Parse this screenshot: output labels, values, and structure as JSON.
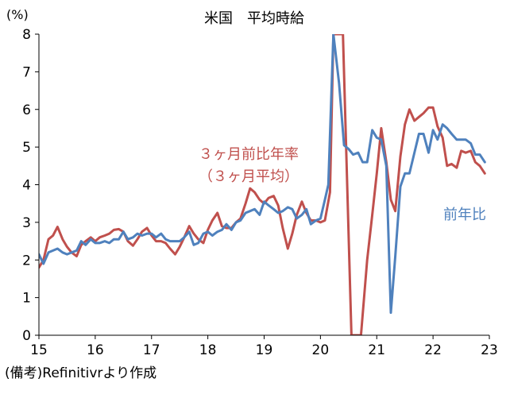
{
  "chart_data": {
    "type": "line",
    "title": "米国　平均時給",
    "ylabel": "(%)",
    "xlabel": "",
    "ylim": [
      0,
      8
    ],
    "xlim": [
      2015,
      2023
    ],
    "y_ticks": [
      0,
      1,
      2,
      3,
      4,
      5,
      6,
      7,
      8
    ],
    "x_ticks": [
      {
        "value": 2015,
        "label": "15"
      },
      {
        "value": 2016,
        "label": "16"
      },
      {
        "value": 2017,
        "label": "17"
      },
      {
        "value": 2018,
        "label": "18"
      },
      {
        "value": 2019,
        "label": "19"
      },
      {
        "value": 2020,
        "label": "20"
      },
      {
        "value": 2021,
        "label": "21"
      },
      {
        "value": 2022,
        "label": "22"
      },
      {
        "value": 2023,
        "label": "23"
      }
    ],
    "grid": false,
    "series": [
      {
        "name": "３ヶ月前比年率（３ヶ月平均）",
        "label_lines": [
          "３ヶ月前比年率",
          "（３ヶ月平均）"
        ],
        "color": "#c0504d",
        "points": [
          [
            2015.0,
            1.8
          ],
          [
            2015.08,
            2.0
          ],
          [
            2015.17,
            2.55
          ],
          [
            2015.25,
            2.65
          ],
          [
            2015.33,
            2.88
          ],
          [
            2015.42,
            2.55
          ],
          [
            2015.5,
            2.35
          ],
          [
            2015.58,
            2.2
          ],
          [
            2015.67,
            2.1
          ],
          [
            2015.75,
            2.4
          ],
          [
            2015.83,
            2.5
          ],
          [
            2015.92,
            2.6
          ],
          [
            2016.0,
            2.5
          ],
          [
            2016.08,
            2.6
          ],
          [
            2016.17,
            2.65
          ],
          [
            2016.25,
            2.7
          ],
          [
            2016.33,
            2.8
          ],
          [
            2016.42,
            2.82
          ],
          [
            2016.5,
            2.75
          ],
          [
            2016.58,
            2.5
          ],
          [
            2016.67,
            2.38
          ],
          [
            2016.75,
            2.55
          ],
          [
            2016.83,
            2.75
          ],
          [
            2016.92,
            2.85
          ],
          [
            2017.0,
            2.65
          ],
          [
            2017.08,
            2.5
          ],
          [
            2017.17,
            2.5
          ],
          [
            2017.25,
            2.45
          ],
          [
            2017.33,
            2.3
          ],
          [
            2017.42,
            2.15
          ],
          [
            2017.5,
            2.35
          ],
          [
            2017.58,
            2.6
          ],
          [
            2017.67,
            2.9
          ],
          [
            2017.75,
            2.7
          ],
          [
            2017.83,
            2.55
          ],
          [
            2017.92,
            2.45
          ],
          [
            2018.0,
            2.8
          ],
          [
            2018.08,
            3.05
          ],
          [
            2018.17,
            3.25
          ],
          [
            2018.25,
            2.9
          ],
          [
            2018.33,
            2.85
          ],
          [
            2018.42,
            2.85
          ],
          [
            2018.5,
            3.0
          ],
          [
            2018.58,
            3.1
          ],
          [
            2018.67,
            3.5
          ],
          [
            2018.75,
            3.9
          ],
          [
            2018.83,
            3.8
          ],
          [
            2018.92,
            3.6
          ],
          [
            2019.0,
            3.5
          ],
          [
            2019.08,
            3.65
          ],
          [
            2019.17,
            3.7
          ],
          [
            2019.25,
            3.45
          ],
          [
            2019.33,
            2.85
          ],
          [
            2019.42,
            2.3
          ],
          [
            2019.5,
            2.7
          ],
          [
            2019.58,
            3.2
          ],
          [
            2019.67,
            3.55
          ],
          [
            2019.75,
            3.25
          ],
          [
            2019.83,
            3.05
          ],
          [
            2019.92,
            3.05
          ],
          [
            2020.0,
            3.0
          ],
          [
            2020.08,
            3.05
          ],
          [
            2020.17,
            3.8
          ],
          [
            2020.23,
            8.0
          ],
          [
            2020.4,
            8.0
          ],
          [
            2020.55,
            0.0
          ],
          [
            2020.72,
            0.0
          ],
          [
            2020.83,
            2.0
          ],
          [
            2020.92,
            3.2
          ],
          [
            2021.0,
            4.3
          ],
          [
            2021.08,
            5.5
          ],
          [
            2021.17,
            4.6
          ],
          [
            2021.25,
            3.6
          ],
          [
            2021.33,
            3.3
          ],
          [
            2021.42,
            4.75
          ],
          [
            2021.5,
            5.6
          ],
          [
            2021.58,
            6.0
          ],
          [
            2021.67,
            5.7
          ],
          [
            2021.75,
            5.8
          ],
          [
            2021.83,
            5.9
          ],
          [
            2021.92,
            6.05
          ],
          [
            2022.0,
            6.05
          ],
          [
            2022.08,
            5.55
          ],
          [
            2022.17,
            5.25
          ],
          [
            2022.25,
            4.5
          ],
          [
            2022.33,
            4.55
          ],
          [
            2022.42,
            4.45
          ],
          [
            2022.5,
            4.9
          ],
          [
            2022.58,
            4.85
          ],
          [
            2022.67,
            4.9
          ],
          [
            2022.75,
            4.6
          ],
          [
            2022.83,
            4.5
          ],
          [
            2022.92,
            4.3
          ]
        ]
      },
      {
        "name": "前年比",
        "label_lines": [
          "前年比"
        ],
        "color": "#4f81bd",
        "points": [
          [
            2015.0,
            2.15
          ],
          [
            2015.08,
            1.9
          ],
          [
            2015.17,
            2.2
          ],
          [
            2015.25,
            2.25
          ],
          [
            2015.33,
            2.3
          ],
          [
            2015.42,
            2.2
          ],
          [
            2015.5,
            2.15
          ],
          [
            2015.58,
            2.2
          ],
          [
            2015.67,
            2.25
          ],
          [
            2015.75,
            2.5
          ],
          [
            2015.83,
            2.4
          ],
          [
            2015.92,
            2.55
          ],
          [
            2016.0,
            2.45
          ],
          [
            2016.08,
            2.45
          ],
          [
            2016.17,
            2.5
          ],
          [
            2016.25,
            2.45
          ],
          [
            2016.33,
            2.55
          ],
          [
            2016.42,
            2.55
          ],
          [
            2016.5,
            2.75
          ],
          [
            2016.58,
            2.55
          ],
          [
            2016.67,
            2.6
          ],
          [
            2016.75,
            2.7
          ],
          [
            2016.83,
            2.65
          ],
          [
            2016.92,
            2.7
          ],
          [
            2017.0,
            2.7
          ],
          [
            2017.08,
            2.6
          ],
          [
            2017.17,
            2.7
          ],
          [
            2017.25,
            2.55
          ],
          [
            2017.33,
            2.5
          ],
          [
            2017.42,
            2.5
          ],
          [
            2017.5,
            2.5
          ],
          [
            2017.58,
            2.6
          ],
          [
            2017.67,
            2.75
          ],
          [
            2017.75,
            2.4
          ],
          [
            2017.83,
            2.45
          ],
          [
            2017.92,
            2.7
          ],
          [
            2018.0,
            2.75
          ],
          [
            2018.08,
            2.65
          ],
          [
            2018.17,
            2.75
          ],
          [
            2018.25,
            2.8
          ],
          [
            2018.33,
            2.95
          ],
          [
            2018.42,
            2.8
          ],
          [
            2018.5,
            3.0
          ],
          [
            2018.58,
            3.05
          ],
          [
            2018.67,
            3.25
          ],
          [
            2018.75,
            3.3
          ],
          [
            2018.83,
            3.35
          ],
          [
            2018.92,
            3.2
          ],
          [
            2019.0,
            3.55
          ],
          [
            2019.08,
            3.45
          ],
          [
            2019.17,
            3.35
          ],
          [
            2019.25,
            3.25
          ],
          [
            2019.33,
            3.3
          ],
          [
            2019.42,
            3.4
          ],
          [
            2019.5,
            3.35
          ],
          [
            2019.58,
            3.1
          ],
          [
            2019.67,
            3.2
          ],
          [
            2019.75,
            3.35
          ],
          [
            2019.83,
            2.95
          ],
          [
            2019.92,
            3.05
          ],
          [
            2020.0,
            3.1
          ],
          [
            2020.08,
            3.6
          ],
          [
            2020.14,
            4.0
          ],
          [
            2020.23,
            8.0
          ],
          [
            2020.33,
            6.7
          ],
          [
            2020.42,
            5.05
          ],
          [
            2020.5,
            4.95
          ],
          [
            2020.58,
            4.8
          ],
          [
            2020.67,
            4.85
          ],
          [
            2020.75,
            4.6
          ],
          [
            2020.83,
            4.6
          ],
          [
            2020.92,
            5.45
          ],
          [
            2021.0,
            5.25
          ],
          [
            2021.08,
            5.2
          ],
          [
            2021.17,
            4.5
          ],
          [
            2021.25,
            0.6
          ],
          [
            2021.33,
            2.1
          ],
          [
            2021.42,
            3.95
          ],
          [
            2021.5,
            4.3
          ],
          [
            2021.58,
            4.3
          ],
          [
            2021.67,
            4.85
          ],
          [
            2021.75,
            5.35
          ],
          [
            2021.83,
            5.35
          ],
          [
            2021.92,
            4.85
          ],
          [
            2022.0,
            5.45
          ],
          [
            2022.08,
            5.2
          ],
          [
            2022.17,
            5.6
          ],
          [
            2022.25,
            5.5
          ],
          [
            2022.33,
            5.35
          ],
          [
            2022.42,
            5.2
          ],
          [
            2022.5,
            5.2
          ],
          [
            2022.58,
            5.2
          ],
          [
            2022.67,
            5.1
          ],
          [
            2022.75,
            4.8
          ],
          [
            2022.83,
            4.8
          ],
          [
            2022.92,
            4.6
          ]
        ]
      }
    ],
    "source_note": "(備考)Refinitivrより作成"
  }
}
